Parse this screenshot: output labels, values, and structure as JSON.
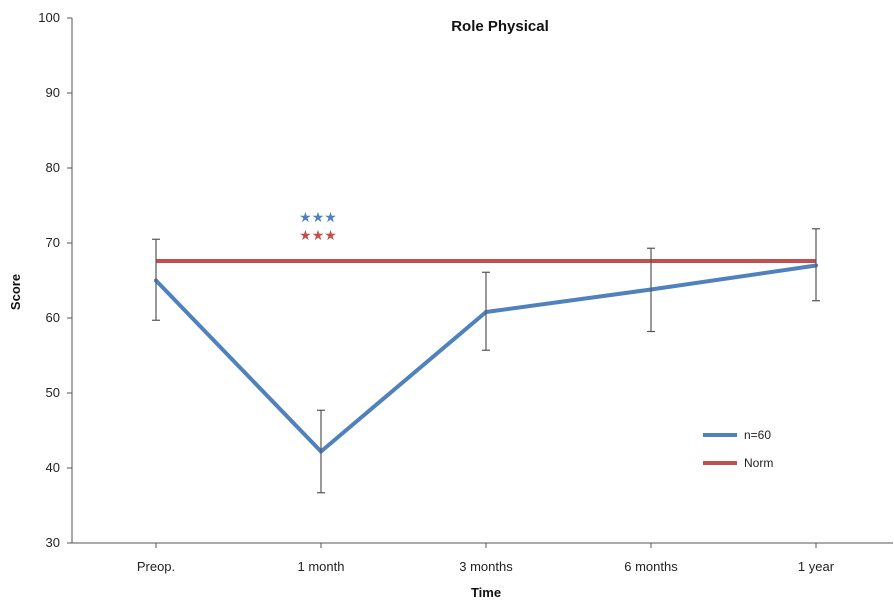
{
  "chart_data": {
    "type": "line",
    "title": "Role Physical",
    "xlabel": "Time",
    "ylabel": "Score",
    "categories": [
      "Preop.",
      "1 month",
      "3 months",
      "6 months",
      "1 year"
    ],
    "ylim": [
      30,
      100
    ],
    "yticks": [
      30,
      40,
      50,
      60,
      70,
      80,
      90,
      100
    ],
    "grid": false,
    "legend_position": "bottom-right",
    "series": [
      {
        "name": "n=60",
        "color": "#4f81bd",
        "values": [
          65.0,
          42.2,
          60.8,
          63.8,
          67.0
        ],
        "error_low": [
          59.7,
          36.7,
          55.7,
          58.2,
          62.3
        ],
        "error_high": [
          70.5,
          47.7,
          66.1,
          69.3,
          71.9
        ]
      },
      {
        "name": "Norm",
        "color": "#c0504d",
        "values": [
          67.6,
          67.6,
          67.6,
          67.6,
          67.6
        ]
      }
    ],
    "annotations": [
      {
        "text": "★★★",
        "category": "1 month",
        "color": "#4f81bd"
      },
      {
        "text": "★★★",
        "category": "1 month",
        "color": "#c0504d"
      }
    ]
  }
}
